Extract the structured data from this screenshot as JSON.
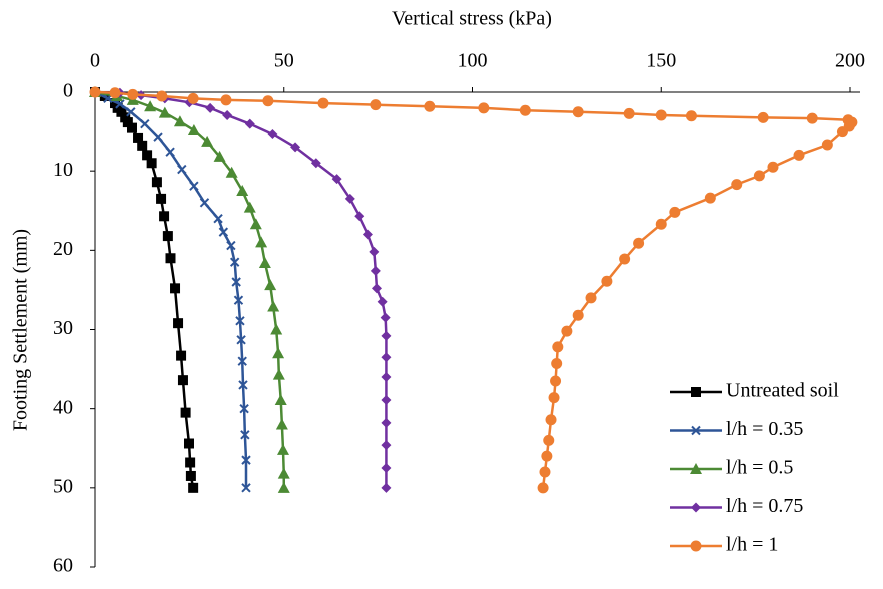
{
  "chart_data": {
    "type": "line",
    "x_label": "Vertical stress (kPa)",
    "y_label": "Footing Settlement (mm)",
    "xlim": [
      0,
      200
    ],
    "xticks": [
      0,
      50,
      100,
      150,
      200
    ],
    "ylim": [
      0,
      60
    ],
    "yticks": [
      0,
      10,
      20,
      30,
      40,
      50,
      60
    ],
    "y_inverted": true,
    "x_axis_position": "top",
    "grid": false,
    "legend_position": "lower right",
    "series": [
      {
        "name": "Untreated soil",
        "color": "#000000",
        "marker": "square",
        "x": [
          0,
          2.6,
          5.3,
          6,
          7,
          8,
          8.7,
          9.8,
          11.4,
          12.5,
          13.8,
          15,
          16.4,
          17.5,
          18.3,
          19.3,
          20,
          21.2,
          22,
          22.8,
          23.3,
          24,
          24.9,
          25.2,
          25.4,
          26
        ],
        "values": [
          0,
          0.5,
          1.4,
          2,
          2.5,
          3.2,
          3.8,
          4.5,
          5.8,
          6.8,
          8,
          9,
          11.4,
          13.5,
          15.7,
          18.2,
          21,
          24.8,
          29.2,
          33.3,
          36.4,
          40.5,
          44.4,
          46.8,
          48.5,
          50
        ]
      },
      {
        "name": "l/h = 0.35",
        "color": "#2e5597",
        "marker": "x",
        "x": [
          0,
          3.4,
          6.6,
          9.5,
          13.2,
          16.7,
          19.9,
          23,
          26.2,
          29,
          32.6,
          34,
          36,
          37,
          37.4,
          38,
          38.4,
          38.7,
          39,
          39.2,
          39.5,
          39.7,
          40,
          40
        ],
        "values": [
          0,
          0.8,
          1.5,
          2.5,
          4,
          5.7,
          7.6,
          9.8,
          11.9,
          14,
          16,
          17.7,
          19.4,
          21.5,
          24,
          26.3,
          28.9,
          31.3,
          34,
          37,
          40,
          43.3,
          46.5,
          50
        ]
      },
      {
        "name": "l/h = 0.5",
        "color": "#4c8a34",
        "marker": "triangle",
        "x": [
          0,
          5.8,
          10,
          14.6,
          18.5,
          22.5,
          26.2,
          29.7,
          33,
          36.2,
          39,
          41,
          42.6,
          44,
          45,
          46.4,
          47.2,
          48,
          48.5,
          48.7,
          49.2,
          49.5,
          49.8,
          50,
          50
        ],
        "values": [
          0,
          0.5,
          1,
          1.8,
          2.6,
          3.7,
          4.8,
          6.3,
          8.2,
          10.2,
          12.5,
          14.6,
          16.7,
          19,
          21.6,
          24.4,
          27.1,
          30,
          33,
          35.7,
          38.9,
          42,
          45.2,
          48.2,
          50
        ]
      },
      {
        "name": "l/h = 0.75",
        "color": "#7030a0",
        "marker": "diamond",
        "x": [
          0,
          6.6,
          12.2,
          18.5,
          25,
          30.5,
          35,
          41,
          47,
          53,
          58.5,
          64,
          67.5,
          70,
          72.3,
          74,
          74.4,
          74.7,
          76.2,
          77,
          77.2,
          77.2,
          77.2,
          77.2,
          77.2,
          77.2,
          77.2,
          77.2
        ],
        "values": [
          0,
          0.1,
          0.4,
          0.8,
          1.3,
          2,
          2.9,
          4,
          5.3,
          7,
          9,
          11,
          13.5,
          15.7,
          18,
          20.2,
          22.6,
          24.8,
          26.5,
          28.5,
          30.8,
          33.5,
          36,
          38.9,
          41.8,
          44.6,
          47.5,
          50
        ]
      },
      {
        "name": "l/h = 1",
        "color": "#ed7d31",
        "marker": "circle",
        "x": [
          0,
          5.3,
          10,
          17.7,
          26,
          34.7,
          45.8,
          60.4,
          74.4,
          88.7,
          103,
          114,
          128,
          141.5,
          150,
          158,
          177,
          190,
          199.5,
          200.5,
          199.8,
          198,
          194,
          186.5,
          179.6,
          176,
          170,
          163,
          153.6,
          150,
          144,
          140.3,
          135.6,
          131.4,
          128,
          125,
          122.6,
          122.3,
          122,
          121.6,
          120.8,
          120.2,
          119.7,
          119.2,
          118.7
        ],
        "values": [
          0,
          0.1,
          0.3,
          0.5,
          0.8,
          1,
          1.1,
          1.4,
          1.6,
          1.8,
          2,
          2.3,
          2.5,
          2.7,
          2.9,
          3,
          3.2,
          3.3,
          3.5,
          3.8,
          4.3,
          5,
          6.7,
          8,
          9.5,
          10.6,
          11.7,
          13.4,
          15.2,
          16.7,
          19.1,
          21.1,
          23.9,
          26,
          28.2,
          30.2,
          32.2,
          34.3,
          36.5,
          38.6,
          41.4,
          44,
          46,
          48,
          50
        ]
      }
    ]
  }
}
